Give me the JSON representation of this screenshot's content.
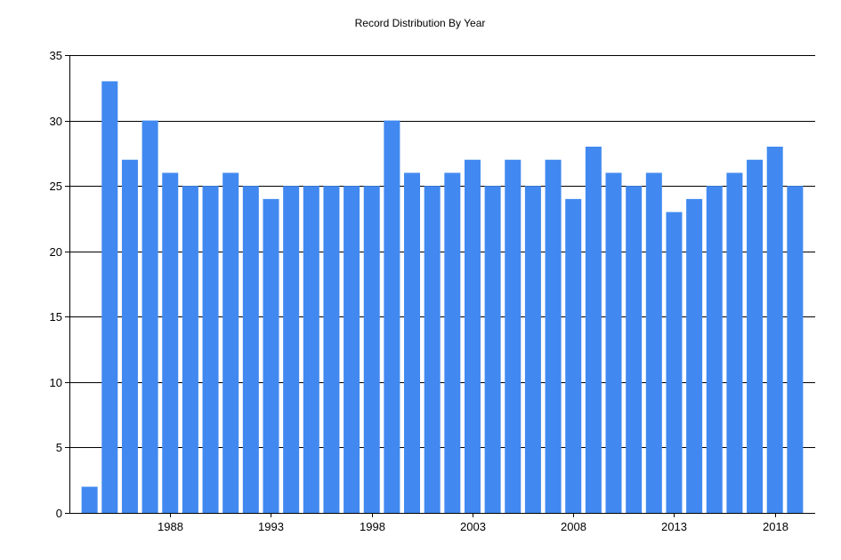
{
  "chart_data": {
    "type": "bar",
    "title": "Record Distribution By Year",
    "xlabel": "",
    "ylabel": "",
    "x": [
      1984,
      1985,
      1986,
      1987,
      1988,
      1989,
      1990,
      1991,
      1992,
      1993,
      1994,
      1995,
      1996,
      1997,
      1998,
      1999,
      2000,
      2001,
      2002,
      2003,
      2004,
      2005,
      2006,
      2007,
      2008,
      2009,
      2010,
      2011,
      2012,
      2013,
      2014,
      2015,
      2016,
      2017,
      2018,
      2019
    ],
    "values": [
      2,
      33,
      27,
      30,
      26,
      25,
      25,
      26,
      25,
      24,
      25,
      25,
      25,
      25,
      25,
      30,
      26,
      25,
      26,
      27,
      25,
      27,
      25,
      27,
      24,
      28,
      26,
      25,
      26,
      23,
      24,
      25,
      26,
      27,
      28,
      25
    ],
    "xlim": [
      1983,
      2020
    ],
    "xticks": [
      "1988",
      "1993",
      "1998",
      "2003",
      "2008",
      "2013",
      "2018"
    ],
    "ylim": [
      0,
      35
    ],
    "yticks": [
      "0",
      "5",
      "10",
      "15",
      "20",
      "25",
      "30",
      "35"
    ],
    "grid": "horizontal",
    "legend": "none",
    "bar_color": "#4189f0"
  }
}
